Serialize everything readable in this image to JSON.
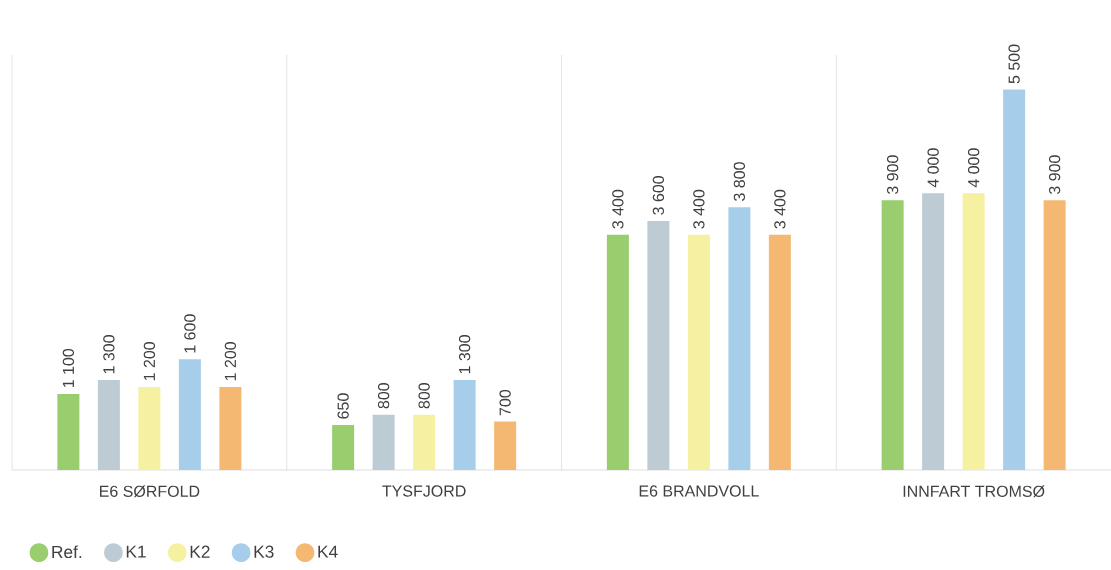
{
  "chart_data": {
    "type": "bar",
    "categories": [
      "E6 SØRFOLD",
      "TYSFJORD",
      "E6 BRANDVOLL",
      "INNFART TROMSØ"
    ],
    "ylim": [
      0,
      6000
    ],
    "tick_labels": "x",
    "legend": "bottom",
    "series": [
      {
        "name": "Ref.",
        "color": "#99cd6e",
        "values": [
          1100,
          650,
          3400,
          3900
        ],
        "value_labels": [
          "1 100",
          "650",
          "3 400",
          "3 900"
        ]
      },
      {
        "name": "K1",
        "color": "#bdcbd4",
        "values": [
          1300,
          800,
          3600,
          4000
        ],
        "value_labels": [
          "1 300",
          "800",
          "3 600",
          "4 000"
        ]
      },
      {
        "name": "K2",
        "color": "#f6f1a0",
        "values": [
          1200,
          800,
          3400,
          4000
        ],
        "value_labels": [
          "1 200",
          "800",
          "3 400",
          "4 000"
        ]
      },
      {
        "name": "K3",
        "color": "#a6cdea",
        "values": [
          1600,
          1300,
          3800,
          5500
        ],
        "value_labels": [
          "1 600",
          "1 300",
          "3 800",
          "5 500"
        ]
      },
      {
        "name": "K4",
        "color": "#f4b872",
        "values": [
          1200,
          700,
          3400,
          3900
        ],
        "value_labels": [
          "1 200",
          "700",
          "3 400",
          "3 900"
        ]
      }
    ]
  }
}
